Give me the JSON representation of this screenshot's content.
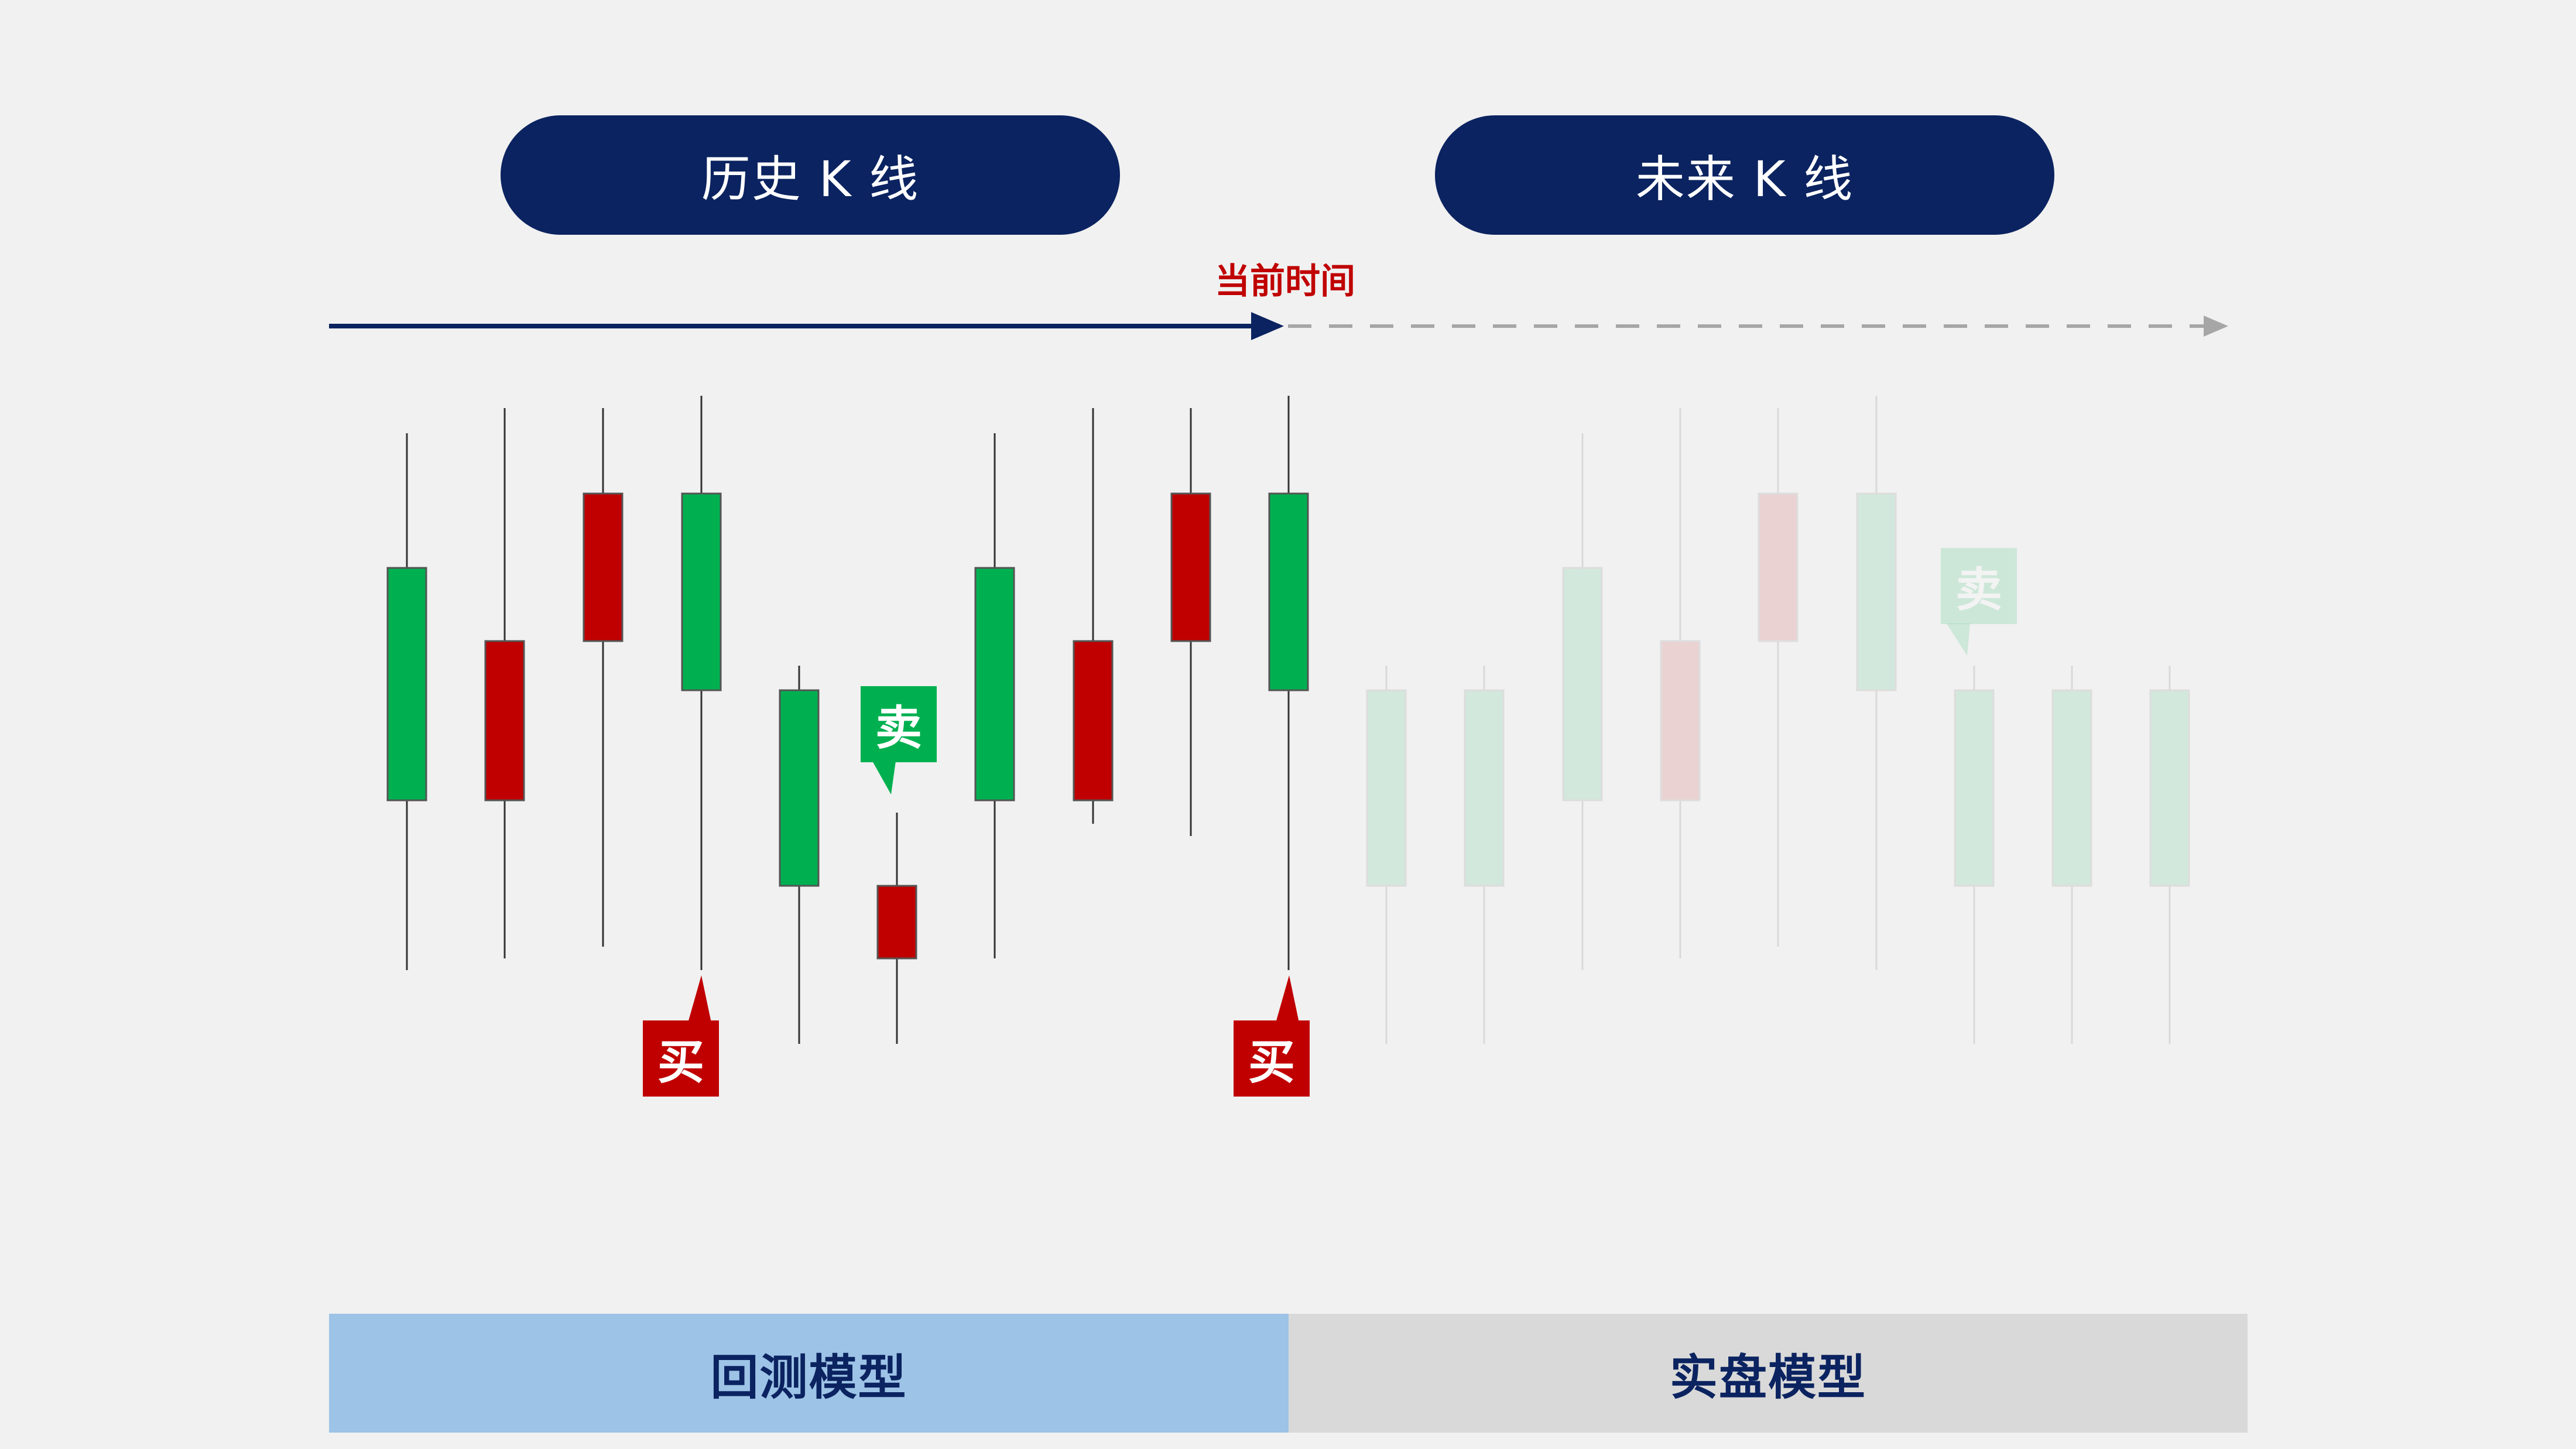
{
  "labels": {
    "history": "历史 K 线",
    "future": "未来 K 线",
    "current_time": "当前时间",
    "backtest_model": "回测模型",
    "live_model": "实盘模型"
  },
  "signals": {
    "sell": "卖",
    "buy": "买"
  },
  "colors": {
    "navy": "#0b2360",
    "up_green": "#00b050",
    "down_red": "#c00000",
    "backtest_blue": "#9dc3e6",
    "live_gray": "#d9d9d9",
    "future_arrow": "#a6a6a6"
  }
}
